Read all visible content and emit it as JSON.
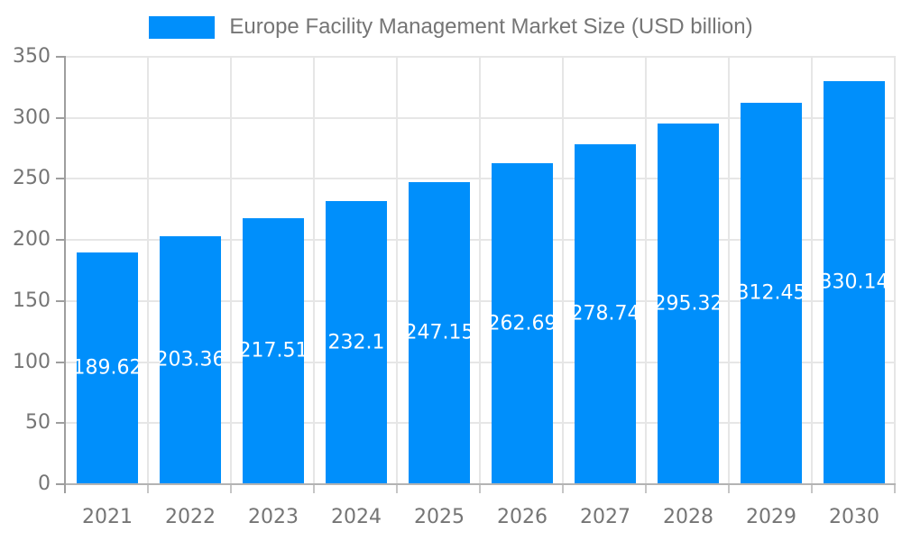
{
  "chart_data": {
    "type": "bar",
    "title": "Europe Facility Management Market Size (USD billion)",
    "categories": [
      "2021",
      "2022",
      "2023",
      "2024",
      "2025",
      "2026",
      "2027",
      "2028",
      "2029",
      "2030"
    ],
    "values": [
      189.62,
      203.36,
      217.51,
      232.1,
      247.15,
      262.69,
      278.74,
      295.32,
      312.45,
      330.14
    ],
    "value_labels": [
      "189.62",
      "203.36",
      "217.51",
      "232.1",
      "247.15",
      "262.69",
      "278.74",
      "295.32",
      "312.45",
      "330.14"
    ],
    "xlabel": "",
    "ylabel": "",
    "ylim": [
      0,
      350
    ],
    "yticks": [
      0,
      50,
      100,
      150,
      200,
      250,
      300,
      350
    ],
    "grid": true,
    "legend_position": "top",
    "colors": {
      "bar": "#008FFB",
      "grid": "#e6e6e6",
      "y_axis": "#9e9e9e",
      "x_axis": "#b3b3b3",
      "tick": "#c6c6c6",
      "axis_text": "#757575",
      "data_label": "#ffffff",
      "background": "#ffffff"
    }
  }
}
